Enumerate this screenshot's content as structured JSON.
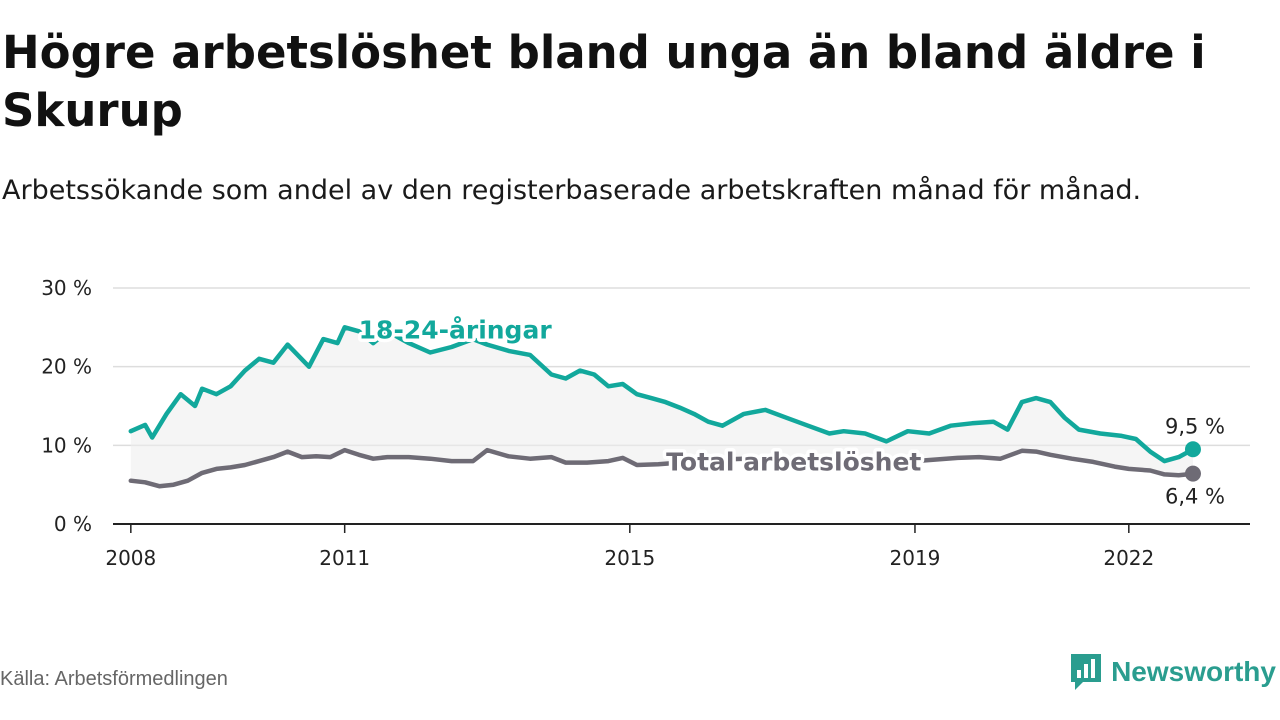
{
  "header": {
    "title": "Högre arbetslöshet bland unga än bland äldre i Skurup",
    "subtitle": "Arbetssökande som andel av den registerbaserade arbetskraften månad för månad."
  },
  "footer": {
    "source": "Källa: Arbetsförmedlingen",
    "brand": "Newsworthy"
  },
  "colors": {
    "youth": "#12a89c",
    "total": "#6e6b75",
    "band": "#ededed",
    "grid": "#dddddd",
    "brand": "#2a9d8f"
  },
  "chart_data": {
    "type": "line",
    "title": "Högre arbetslöshet bland unga än bland äldre i Skurup",
    "xlabel": "",
    "ylabel": "",
    "xlim": [
      2007.75,
      2023.7
    ],
    "ylim": [
      0,
      30
    ],
    "y_ticks": [
      0,
      10,
      20,
      30
    ],
    "y_tick_labels": [
      "0 %",
      "10 %",
      "20 %",
      "30 %"
    ],
    "x_ticks": [
      2008,
      2011,
      2015,
      2019,
      2022
    ],
    "x_tick_labels": [
      "2008",
      "2011",
      "2015",
      "2019",
      "2022"
    ],
    "grid": true,
    "series": [
      {
        "name": "18-24-åringar",
        "label": "18-24-åringar",
        "end_label": "9,5 %",
        "x": [
          2008.0,
          2008.2,
          2008.3,
          2008.5,
          2008.7,
          2008.9,
          2009.0,
          2009.2,
          2009.4,
          2009.6,
          2009.8,
          2010.0,
          2010.2,
          2010.5,
          2010.7,
          2010.9,
          2011.0,
          2011.2,
          2011.4,
          2011.6,
          2011.9,
          2012.2,
          2012.5,
          2012.8,
          2013.0,
          2013.3,
          2013.6,
          2013.9,
          2014.1,
          2014.3,
          2014.5,
          2014.7,
          2014.9,
          2015.1,
          2015.3,
          2015.5,
          2015.7,
          2015.9,
          2016.1,
          2016.3,
          2016.6,
          2016.9,
          2017.2,
          2017.5,
          2017.8,
          2018.0,
          2018.3,
          2018.6,
          2018.9,
          2019.2,
          2019.5,
          2019.8,
          2020.1,
          2020.3,
          2020.5,
          2020.7,
          2020.9,
          2021.1,
          2021.3,
          2021.6,
          2021.9,
          2022.1,
          2022.3,
          2022.5,
          2022.7,
          2022.9
        ],
        "values": [
          11.8,
          12.6,
          11.0,
          14.0,
          16.5,
          15.0,
          17.2,
          16.5,
          17.5,
          19.5,
          21.0,
          20.5,
          22.8,
          20.0,
          23.5,
          23.0,
          25.0,
          24.5,
          23.0,
          24.5,
          23.0,
          21.8,
          22.5,
          23.5,
          22.8,
          22.0,
          21.5,
          19.0,
          18.5,
          19.5,
          19.0,
          17.5,
          17.8,
          16.5,
          16.0,
          15.5,
          14.8,
          14.0,
          13.0,
          12.5,
          14.0,
          14.5,
          13.5,
          12.5,
          11.5,
          11.8,
          11.5,
          10.5,
          11.8,
          11.5,
          12.5,
          12.8,
          13.0,
          12.0,
          15.5,
          16.0,
          15.5,
          13.5,
          12.0,
          11.5,
          11.2,
          10.8,
          9.2,
          8.0,
          8.5,
          9.5
        ]
      },
      {
        "name": "Total arbetslöshet",
        "label": "Total arbetslöshet",
        "end_label": "6,4 %",
        "x": [
          2008.0,
          2008.2,
          2008.4,
          2008.6,
          2008.8,
          2009.0,
          2009.2,
          2009.4,
          2009.6,
          2009.8,
          2010.0,
          2010.2,
          2010.4,
          2010.6,
          2010.8,
          2011.0,
          2011.2,
          2011.4,
          2011.6,
          2011.9,
          2012.2,
          2012.5,
          2012.8,
          2013.0,
          2013.3,
          2013.6,
          2013.9,
          2014.1,
          2014.4,
          2014.7,
          2014.9,
          2015.1,
          2015.4,
          2015.7,
          2016.0,
          2016.3,
          2016.6,
          2016.9,
          2017.2,
          2017.5,
          2017.8,
          2018.1,
          2018.4,
          2018.7,
          2019.0,
          2019.3,
          2019.6,
          2019.9,
          2020.2,
          2020.5,
          2020.7,
          2020.9,
          2021.2,
          2021.5,
          2021.8,
          2022.0,
          2022.3,
          2022.5,
          2022.7,
          2022.9
        ],
        "values": [
          5.5,
          5.3,
          4.8,
          5.0,
          5.5,
          6.5,
          7.0,
          7.2,
          7.5,
          8.0,
          8.5,
          9.2,
          8.5,
          8.6,
          8.5,
          9.4,
          8.8,
          8.3,
          8.5,
          8.5,
          8.3,
          8.0,
          8.0,
          9.4,
          8.6,
          8.3,
          8.5,
          7.8,
          7.8,
          8.0,
          8.4,
          7.5,
          7.6,
          7.8,
          8.0,
          8.2,
          8.3,
          8.2,
          8.3,
          8.1,
          8.0,
          8.0,
          7.9,
          7.8,
          8.0,
          8.2,
          8.4,
          8.5,
          8.3,
          9.3,
          9.2,
          8.8,
          8.3,
          7.9,
          7.3,
          7.0,
          6.8,
          6.3,
          6.2,
          6.4
        ]
      }
    ]
  }
}
